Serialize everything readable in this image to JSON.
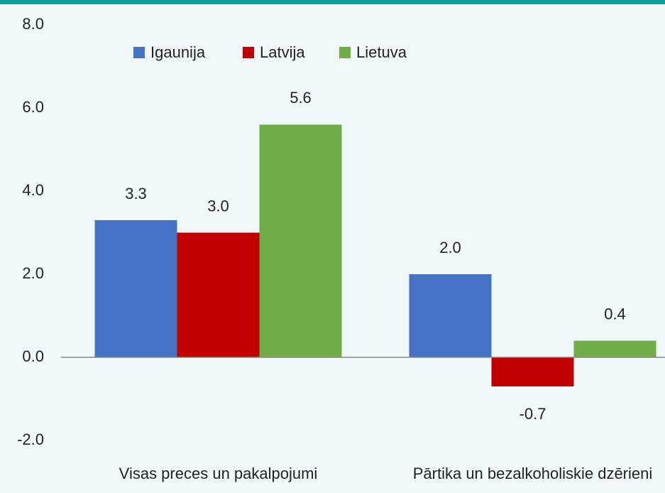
{
  "chart_data": {
    "type": "bar",
    "categories": [
      "Visas preces un pakalpojumi",
      "Pārtika un bezalkoholiskie dzērieni"
    ],
    "series": [
      {
        "name": "Igaunija",
        "color": "#4472c4",
        "values": [
          3.3,
          2.0
        ],
        "value_labels": [
          "3.3",
          "2.0"
        ]
      },
      {
        "name": "Latvija",
        "color": "#c00000",
        "values": [
          3.0,
          -0.7
        ],
        "value_labels": [
          "3.0",
          "-0.7"
        ]
      },
      {
        "name": "Lietuva",
        "color": "#70ad47",
        "values": [
          5.6,
          0.4
        ],
        "value_labels": [
          "5.6",
          "0.4"
        ]
      }
    ],
    "ylim": [
      -2,
      8
    ],
    "yticks": [
      {
        "value": -2,
        "label": "-2.0"
      },
      {
        "value": 0,
        "label": "0.0"
      },
      {
        "value": 2,
        "label": "2.0"
      },
      {
        "value": 4,
        "label": "4.0"
      },
      {
        "value": 6,
        "label": "6.0"
      },
      {
        "value": 8,
        "label": "8.0"
      }
    ],
    "grid": false,
    "legend": "top"
  }
}
